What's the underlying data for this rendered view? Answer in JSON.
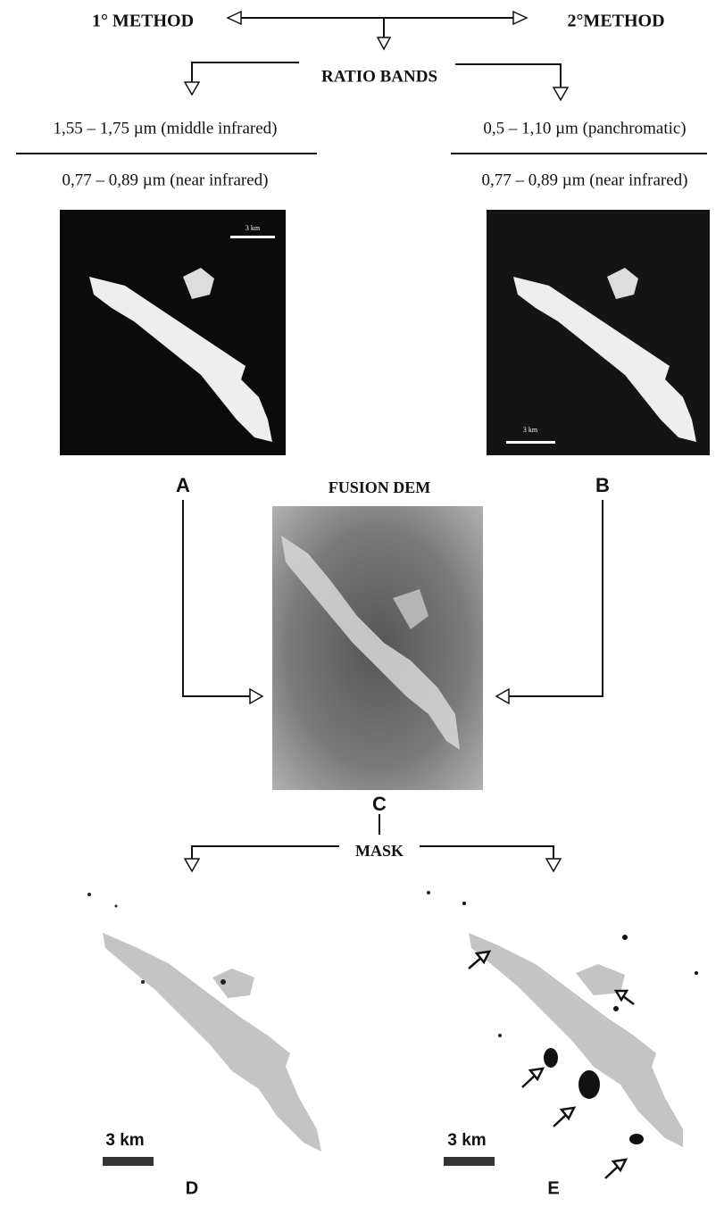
{
  "header": {
    "method_1": "1° METHOD",
    "method_2": "2°METHOD",
    "ratio": "RATIO BANDS"
  },
  "method_1": {
    "numerator": "1,55 – 1,75 µm (middle infrared)",
    "denominator": "0,77 – 0,89 µm (near infrared)"
  },
  "method_2": {
    "numerator": "0,5 – 1,10 µm (panchromatic)",
    "denominator": "0,77 – 0,89 µm (near infrared)"
  },
  "panels": [
    {
      "label": "A",
      "scale": "3 km"
    },
    {
      "label": "B",
      "scale": "3 km"
    },
    {
      "label": "C",
      "title": "FUSION DEM"
    },
    {
      "label": "D",
      "scale": "3 km"
    },
    {
      "label": "E",
      "scale": "3 km"
    }
  ],
  "mask": "MASK"
}
